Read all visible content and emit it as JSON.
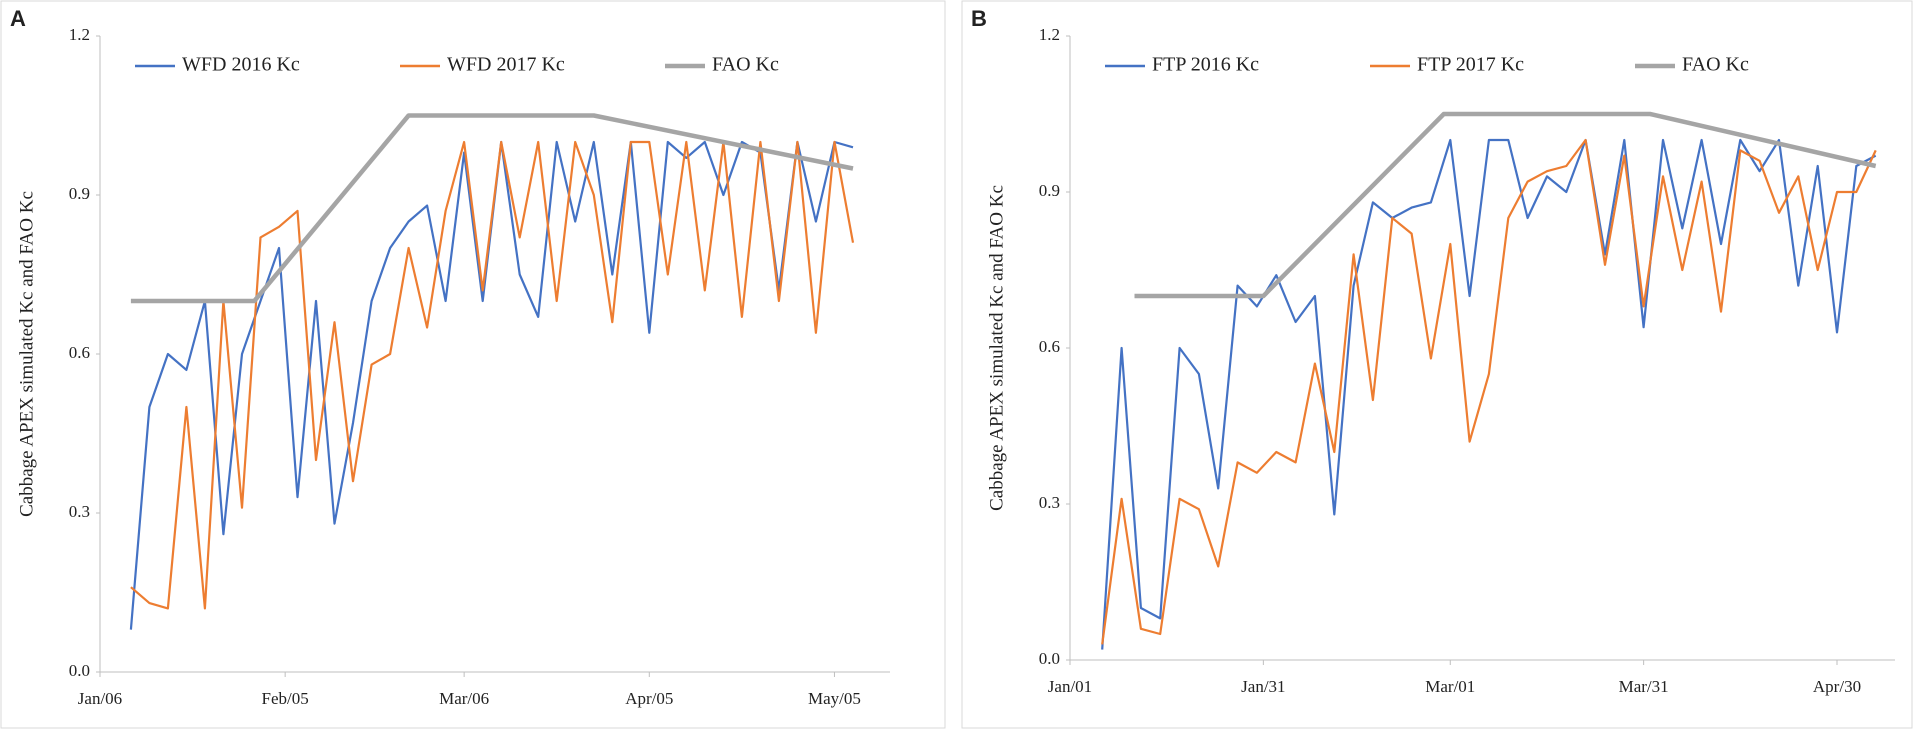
{
  "chart_data": [
    {
      "type": "line",
      "title": "A",
      "ylabel": "Cabbage APEX simulated Kc and FAO Kc",
      "xlim": [
        0,
        128
      ],
      "xticks": [
        {
          "value": 0,
          "label": "Jan/06"
        },
        {
          "value": 30,
          "label": "Feb/05"
        },
        {
          "value": 59,
          "label": "Mar/06"
        },
        {
          "value": 89,
          "label": "Apr/05"
        },
        {
          "value": 119,
          "label": "May/05"
        }
      ],
      "ylim": [
        0,
        1.2
      ],
      "yticks": [
        {
          "value": 0,
          "label": "0.0"
        },
        0.3,
        0.6,
        0.9,
        1.2
      ],
      "legend": "top",
      "series": [
        {
          "name": "WFD 2016 Kc",
          "color": "#4472c4",
          "x": [
            5,
            8,
            11,
            14,
            17,
            20,
            23,
            26,
            29,
            32,
            35,
            38,
            41,
            44,
            47,
            50,
            53,
            56,
            59,
            62,
            65,
            68,
            71,
            74,
            77,
            80,
            83,
            86,
            89,
            92,
            95,
            98,
            101,
            104,
            107,
            110,
            113,
            116,
            119,
            122
          ],
          "values": [
            0.08,
            0.5,
            0.6,
            0.57,
            0.7,
            0.26,
            0.6,
            0.7,
            0.8,
            0.33,
            0.7,
            0.28,
            0.47,
            0.7,
            0.8,
            0.85,
            0.88,
            0.7,
            0.98,
            0.7,
            1.0,
            0.75,
            0.67,
            1.0,
            0.85,
            1.0,
            0.75,
            1.0,
            0.64,
            1.0,
            0.97,
            1.0,
            0.9,
            1.0,
            0.98,
            0.72,
            1.0,
            0.85,
            1.0,
            0.99
          ]
        },
        {
          "name": "WFD 2017 Kc",
          "color": "#ed7d31",
          "x": [
            5,
            8,
            11,
            14,
            17,
            20,
            23,
            26,
            29,
            32,
            35,
            38,
            41,
            44,
            47,
            50,
            53,
            56,
            59,
            62,
            65,
            68,
            71,
            74,
            77,
            80,
            83,
            86,
            89,
            92,
            95,
            98,
            101,
            104,
            107,
            110,
            113,
            116,
            119,
            122
          ],
          "values": [
            0.16,
            0.13,
            0.12,
            0.5,
            0.12,
            0.7,
            0.31,
            0.82,
            0.84,
            0.87,
            0.4,
            0.66,
            0.36,
            0.58,
            0.6,
            0.8,
            0.65,
            0.87,
            1.0,
            0.72,
            1.0,
            0.82,
            1.0,
            0.7,
            1.0,
            0.9,
            0.66,
            1.0,
            1.0,
            0.75,
            1.0,
            0.72,
            1.0,
            0.67,
            1.0,
            0.7,
            1.0,
            0.64,
            1.0,
            0.81
          ]
        },
        {
          "name": "FAO Kc",
          "color": "#a5a5a5",
          "x": [
            5,
            25,
            50,
            80,
            122
          ],
          "values": [
            0.7,
            0.7,
            1.05,
            1.05,
            0.95
          ]
        }
      ]
    },
    {
      "type": "line",
      "title": "B",
      "ylabel": "Cabbage APEX simulated Kc and FAO Kc",
      "xlim": [
        0,
        128
      ],
      "xticks": [
        {
          "value": 0,
          "label": "Jan/01"
        },
        {
          "value": 30,
          "label": "Jan/31"
        },
        {
          "value": 59,
          "label": "Mar/01"
        },
        {
          "value": 89,
          "label": "Mar/31"
        },
        {
          "value": 119,
          "label": "Apr/30"
        }
      ],
      "ylim": [
        0,
        1.2
      ],
      "yticks": [
        {
          "value": 0,
          "label": "0.0"
        },
        0.3,
        0.6,
        0.9,
        1.2
      ],
      "legend": "top",
      "series": [
        {
          "name": "FTP 2016 Kc",
          "color": "#4472c4",
          "x": [
            5,
            8,
            11,
            14,
            17,
            20,
            23,
            26,
            29,
            32,
            35,
            38,
            41,
            44,
            47,
            50,
            53,
            56,
            59,
            62,
            65,
            68,
            71,
            74,
            77,
            80,
            83,
            86,
            89,
            92,
            95,
            98,
            101,
            104,
            107,
            110,
            113,
            116,
            119,
            122,
            125
          ],
          "values": [
            0.02,
            0.6,
            0.1,
            0.08,
            0.6,
            0.55,
            0.33,
            0.72,
            0.68,
            0.74,
            0.65,
            0.7,
            0.28,
            0.72,
            0.88,
            0.85,
            0.87,
            0.88,
            1.0,
            0.7,
            1.0,
            1.0,
            0.85,
            0.93,
            0.9,
            1.0,
            0.78,
            1.0,
            0.64,
            1.0,
            0.83,
            1.0,
            0.8,
            1.0,
            0.94,
            1.0,
            0.72,
            0.95,
            0.63,
            0.95,
            0.97
          ]
        },
        {
          "name": "FTP 2017 Kc",
          "color": "#ed7d31",
          "x": [
            5,
            8,
            11,
            14,
            17,
            20,
            23,
            26,
            29,
            32,
            35,
            38,
            41,
            44,
            47,
            50,
            53,
            56,
            59,
            62,
            65,
            68,
            71,
            74,
            77,
            80,
            83,
            86,
            89,
            92,
            95,
            98,
            101,
            104,
            107,
            110,
            113,
            116,
            119,
            122,
            125
          ],
          "values": [
            0.03,
            0.31,
            0.06,
            0.05,
            0.31,
            0.29,
            0.18,
            0.38,
            0.36,
            0.4,
            0.38,
            0.57,
            0.4,
            0.78,
            0.5,
            0.85,
            0.82,
            0.58,
            0.8,
            0.42,
            0.55,
            0.85,
            0.92,
            0.94,
            0.95,
            1.0,
            0.76,
            0.97,
            0.68,
            0.93,
            0.75,
            0.92,
            0.67,
            0.98,
            0.96,
            0.86,
            0.93,
            0.75,
            0.9,
            0.9,
            0.98
          ]
        },
        {
          "name": "FAO Kc",
          "color": "#a5a5a5",
          "x": [
            10,
            30,
            58,
            90,
            125
          ],
          "values": [
            0.7,
            0.7,
            1.05,
            1.05,
            0.95
          ]
        }
      ]
    }
  ]
}
